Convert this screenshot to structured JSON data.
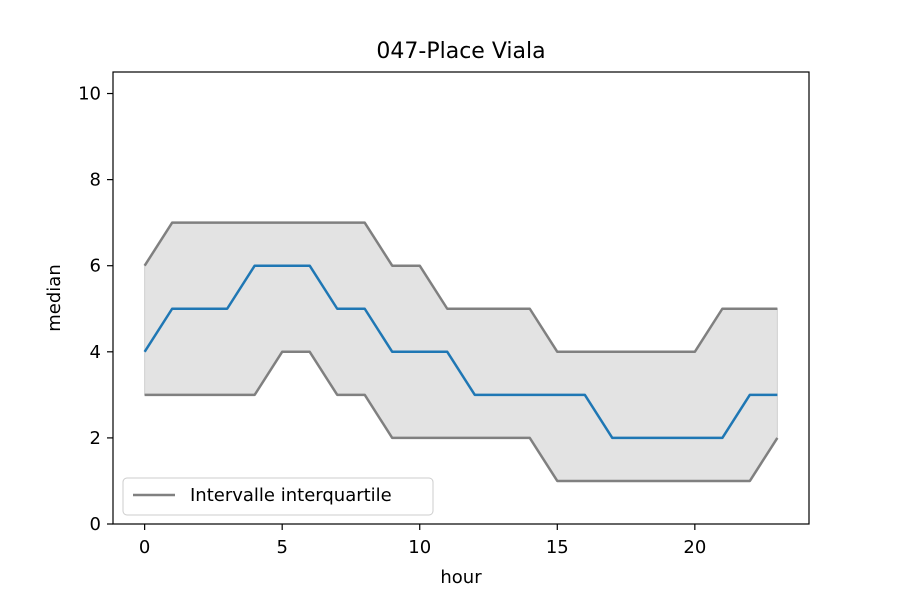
{
  "chart_data": {
    "type": "line",
    "title": "047-Place Viala",
    "xlabel": "hour",
    "ylabel": "median",
    "xlim": [
      -1.15,
      24.15
    ],
    "ylim": [
      0,
      10.5
    ],
    "xticks": [
      0,
      5,
      10,
      15,
      20
    ],
    "yticks": [
      0,
      2,
      4,
      6,
      8,
      10
    ],
    "x": [
      0,
      1,
      2,
      3,
      4,
      5,
      6,
      7,
      8,
      9,
      10,
      11,
      12,
      13,
      14,
      15,
      16,
      17,
      18,
      19,
      20,
      21,
      22,
      23
    ],
    "series": [
      {
        "values": [
          4,
          5,
          5,
          5,
          6,
          6,
          6,
          5,
          5,
          4,
          4,
          4,
          3,
          3,
          3,
          3,
          3,
          2,
          2,
          2,
          2,
          2,
          3,
          3
        ],
        "color": "#1f77b4"
      },
      {
        "name": "Intervalle interquartile",
        "values": [
          6,
          7,
          7,
          7,
          7,
          7,
          7,
          7,
          7,
          6,
          6,
          5,
          5,
          5,
          5,
          4,
          4,
          4,
          4,
          4,
          4,
          5,
          5,
          5
        ],
        "color": "#808080"
      },
      {
        "values": [
          3,
          3,
          3,
          3,
          3,
          4,
          4,
          3,
          3,
          2,
          2,
          2,
          2,
          2,
          2,
          1,
          1,
          1,
          1,
          1,
          1,
          1,
          1,
          2
        ],
        "color": "#808080"
      }
    ],
    "fill_between": {
      "lower_series": 2,
      "upper_series": 1,
      "color": "#e3e3e3"
    },
    "grid": false,
    "legend_position": "lower-left"
  }
}
